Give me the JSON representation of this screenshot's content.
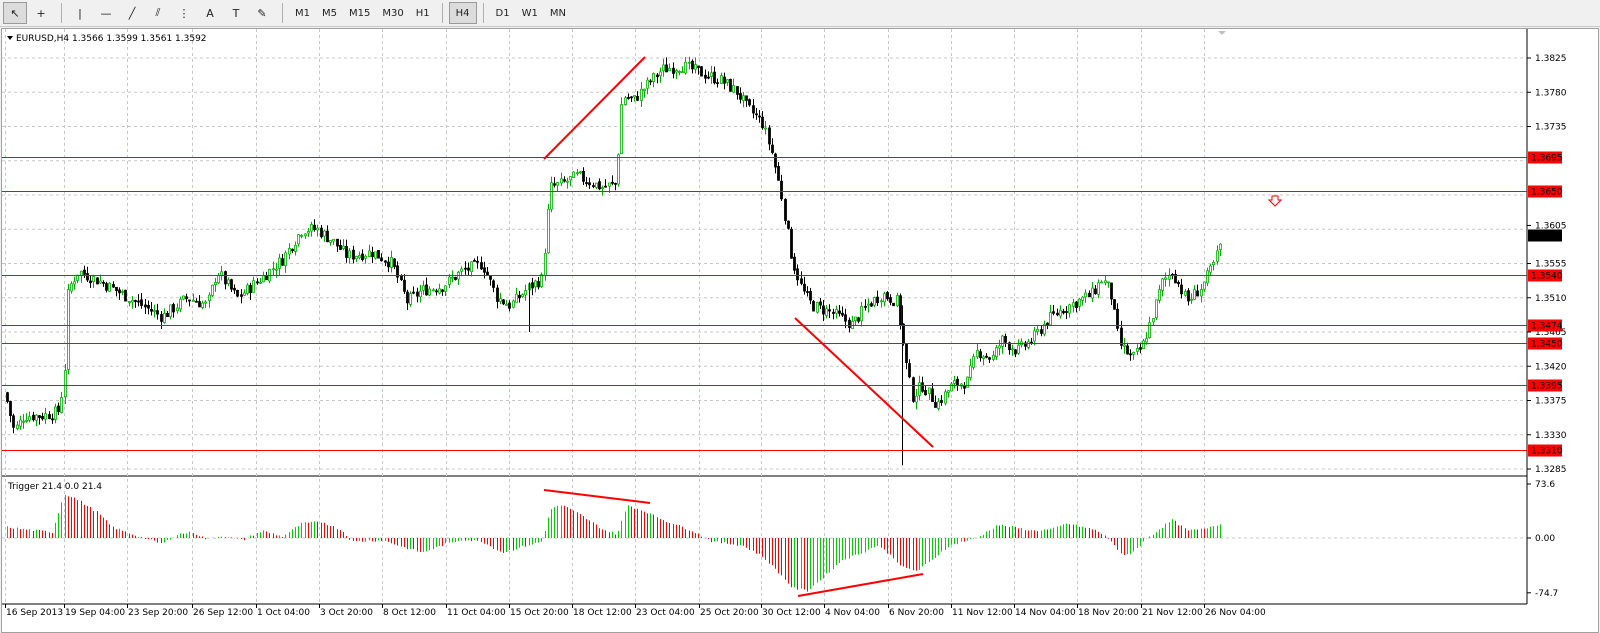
{
  "toolbar": {
    "tools": [
      {
        "name": "cursor-tool-icon",
        "glyph": "↖"
      },
      {
        "name": "crosshair-tool-icon",
        "glyph": "+"
      },
      {
        "name": "vertical-line-tool-icon",
        "glyph": "|"
      },
      {
        "name": "horizontal-line-tool-icon",
        "glyph": "—"
      },
      {
        "name": "trendline-tool-icon",
        "glyph": "╱"
      },
      {
        "name": "equidistant-channel-tool-icon",
        "glyph": "⫽"
      },
      {
        "name": "fibonacci-tool-icon",
        "glyph": "⋮"
      },
      {
        "name": "text-tool-icon",
        "glyph": "A"
      },
      {
        "name": "text-label-tool-icon",
        "glyph": "T"
      },
      {
        "name": "arrows-tool-icon",
        "glyph": "✎"
      }
    ],
    "timeframes": [
      "M1",
      "M5",
      "M15",
      "M30",
      "H1",
      "H4",
      "D1",
      "W1",
      "MN"
    ],
    "active_timeframe": "H4"
  },
  "chart": {
    "header": "EURUSD,H4  1.3566 1.3599 1.3561 1.3592",
    "indicator_label": "Trigger 21.4 0.0 21.4",
    "current_price": "1.3592",
    "price_ticks": [
      "1.3825",
      "1.3780",
      "1.3735",
      "1.3605",
      "1.3555",
      "1.3510",
      "1.3465",
      "1.3420",
      "1.3375",
      "1.3330",
      "1.3285"
    ],
    "level_labels": [
      "1.3695",
      "1.3650",
      "1.3540",
      "1.3474",
      "1.3450",
      "1.3395",
      "1.3310"
    ],
    "indicator_ticks": [
      "73.6",
      "0.00",
      "-74.7"
    ],
    "date_labels": [
      "16 Sep 2013",
      "19 Sep 04:00",
      "23 Sep 20:00",
      "26 Sep 12:00",
      "1 Oct 04:00",
      "3 Oct 20:00",
      "8 Oct 12:00",
      "11 Oct 04:00",
      "15 Oct 20:00",
      "18 Oct 12:00",
      "23 Oct 04:00",
      "25 Oct 20:00",
      "30 Oct 12:00",
      "4 Nov 04:00",
      "6 Nov 20:00",
      "11 Nov 12:00",
      "14 Nov 04:00",
      "18 Nov 20:00",
      "21 Nov 12:00",
      "26 Nov 04:00"
    ]
  },
  "colors": {
    "bull": "#00b000",
    "bear": "#000000",
    "level": "#ff0000",
    "hist_up": "#00d000",
    "hist_down": "#ff0000",
    "grid": "#c8c8c8"
  }
}
